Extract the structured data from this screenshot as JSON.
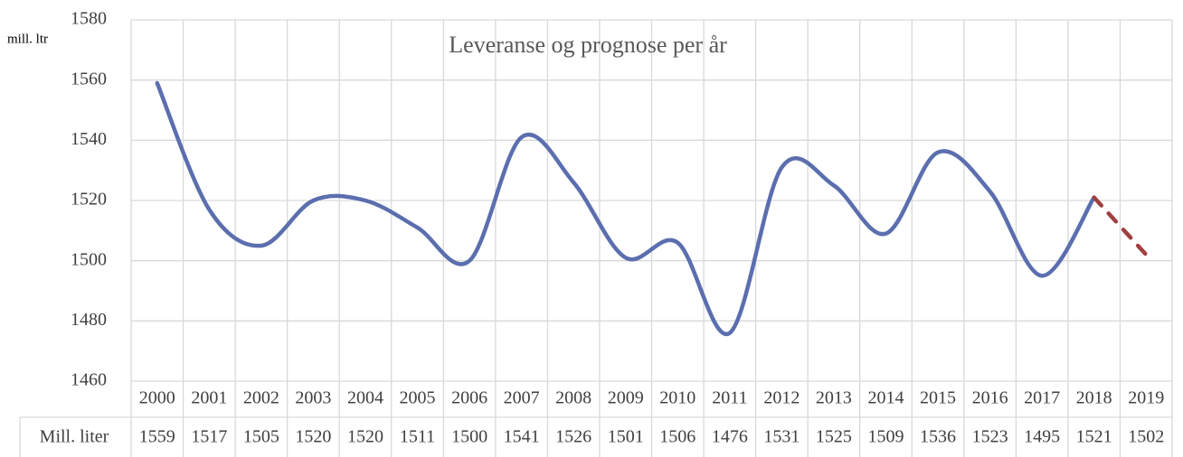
{
  "chart_data": {
    "type": "line",
    "title": "Leveranse og prognose per år",
    "y_label": "mill. ltr",
    "categories": [
      "2000",
      "2001",
      "2002",
      "2003",
      "2004",
      "2005",
      "2006",
      "2007",
      "2008",
      "2009",
      "2010",
      "2011",
      "2012",
      "2013",
      "2014",
      "2015",
      "2016",
      "2017",
      "2018",
      "2019"
    ],
    "series": [
      {
        "name": "Mill. liter",
        "color": "#5b6eae",
        "values": [
          1559,
          1517,
          1505,
          1520,
          1520,
          1511,
          1500,
          1541,
          1526,
          1501,
          1506,
          1476,
          1531,
          1525,
          1509,
          1536,
          1523,
          1495,
          1521,
          null
        ]
      },
      {
        "color": "#a0403f",
        "dashed": true,
        "values": [
          null,
          null,
          null,
          null,
          null,
          null,
          null,
          null,
          null,
          null,
          null,
          null,
          null,
          null,
          null,
          null,
          null,
          null,
          1521,
          1502
        ]
      }
    ],
    "ylim": [
      1460,
      1580
    ],
    "yticks": [
      1460,
      1480,
      1500,
      1520,
      1540,
      1560,
      1580
    ],
    "grid": true,
    "smooth": true
  }
}
